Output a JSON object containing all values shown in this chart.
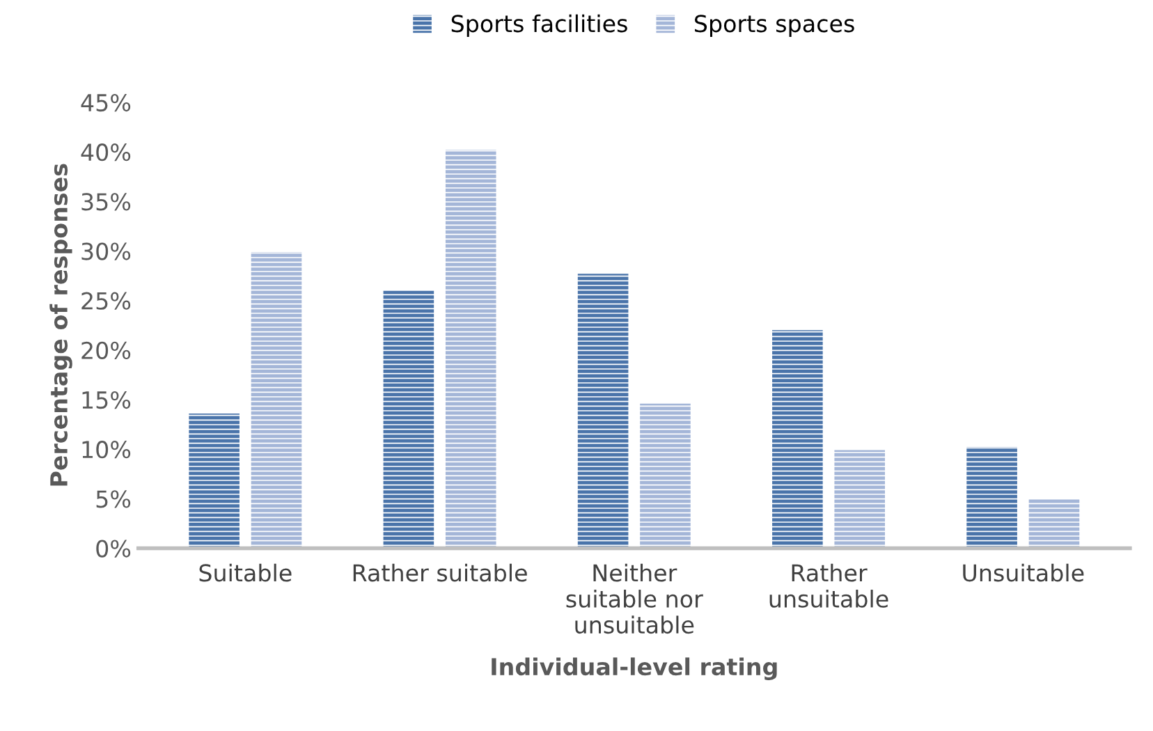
{
  "chart_data": {
    "type": "bar",
    "xlabel": "Individual-level rating",
    "ylabel": "Percentage of responses",
    "categories": [
      "Suitable",
      "Rather suitable",
      "Neither\nsuitable nor\nunsuitable",
      "Rather\nunsuitable",
      "Unsuitable"
    ],
    "series": [
      {
        "name": "Sports facilities",
        "color": "#4a74aa",
        "values": [
          13.6,
          26.0,
          27.7,
          22.0,
          10.2
        ]
      },
      {
        "name": "Sports spaces",
        "color": "#a4b6d8",
        "values": [
          29.9,
          40.2,
          14.6,
          9.9,
          5.0
        ]
      }
    ],
    "ylim": [
      0,
      45
    ],
    "yticks": [
      {
        "value": 0,
        "label": "0%"
      },
      {
        "value": 5,
        "label": "5%"
      },
      {
        "value": 10,
        "label": "10%"
      },
      {
        "value": 15,
        "label": "15%"
      },
      {
        "value": 20,
        "label": "20%"
      },
      {
        "value": 25,
        "label": "25%"
      },
      {
        "value": 30,
        "label": "30%"
      },
      {
        "value": 35,
        "label": "35%"
      },
      {
        "value": 40,
        "label": "40%"
      },
      {
        "value": 45,
        "label": "45%"
      }
    ],
    "grid": false,
    "legend": "top"
  }
}
